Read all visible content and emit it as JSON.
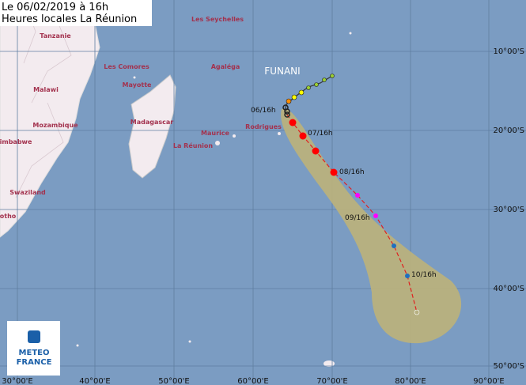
{
  "header": {
    "lines": [
      "Le 06/02/2019 à 16h",
      "Heures locales La Réunion"
    ]
  },
  "places": [
    "Tanzanie",
    "Malawi",
    "Mozambique",
    "imbabwe",
    "Swaziland",
    "otho",
    "Les Seychelles",
    "Les Comores",
    "Agaléga",
    "Mayotte",
    "Madagascar",
    "Maurice",
    "Rodrigues",
    "La Réunion"
  ],
  "lat_labels": [
    "10°00'S",
    "20°00'S",
    "30°00'S",
    "40°00'S",
    "50°00'S"
  ],
  "lon_labels": [
    "30°00'E",
    "40°00'E",
    "50°00'E",
    "60°00'E",
    "70°00'E",
    "80°00'E",
    "90°00'E"
  ],
  "storm": {
    "name": "FUNANI",
    "time_labels": [
      "06/16h",
      "07/16h",
      "08/16h",
      "09/16h",
      "10/16h"
    ]
  },
  "logo": {
    "lines": [
      "METEO",
      "FRANCE"
    ]
  }
}
